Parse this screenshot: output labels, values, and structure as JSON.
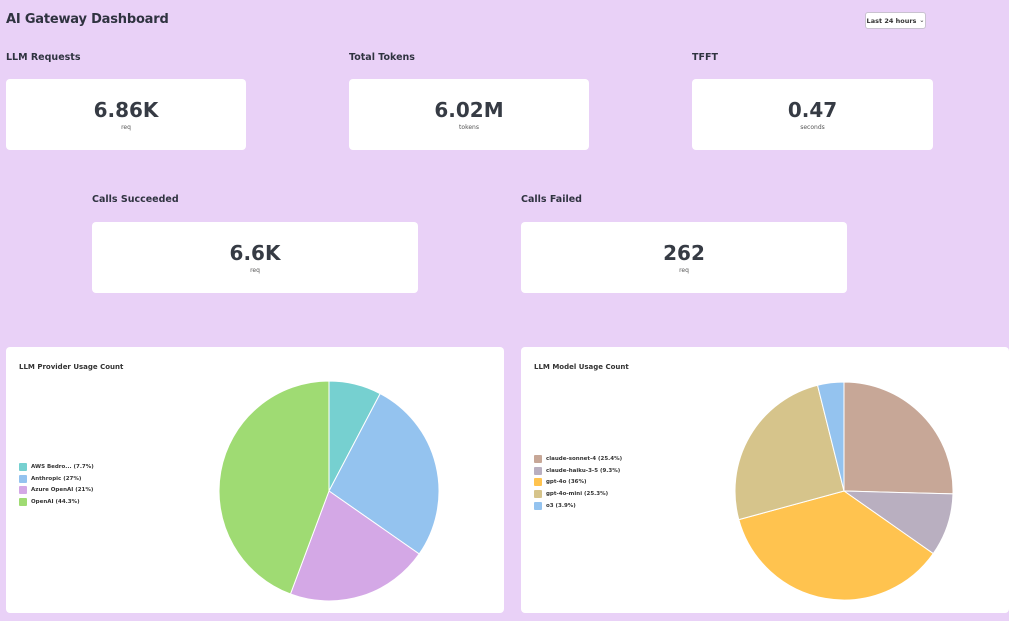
{
  "header": {
    "title": "AI Gateway Dashboard",
    "time_range": "Last 24 hours"
  },
  "stats": {
    "llm_requests": {
      "label": "LLM Requests",
      "value": "6.86K",
      "unit": "req"
    },
    "total_tokens": {
      "label": "Total Tokens",
      "value": "6.02M",
      "unit": "tokens"
    },
    "tfft": {
      "label": "TFFT",
      "value": "0.47",
      "unit": "seconds"
    },
    "calls_succeeded": {
      "label": "Calls Succeeded",
      "value": "6.6K",
      "unit": "req"
    },
    "calls_failed": {
      "label": "Calls Failed",
      "value": "262",
      "unit": "req"
    }
  },
  "chart_data": [
    {
      "type": "pie",
      "title": "LLM Provider Usage Count",
      "legend_position": "left",
      "slices": [
        {
          "label": "AWS Bedro... (7.7%)",
          "value": 7.7,
          "color": "#76d0d0"
        },
        {
          "label": "Anthropic (27%)",
          "value": 27,
          "color": "#94c3ef"
        },
        {
          "label": "Azure OpenAI (21%)",
          "value": 21,
          "color": "#d4a8e6"
        },
        {
          "label": "OpenAI (44.3%)",
          "value": 44.3,
          "color": "#9fdb73"
        }
      ]
    },
    {
      "type": "pie",
      "title": "LLM Model Usage Count",
      "legend_position": "left",
      "slices": [
        {
          "label": "claude-sonnet-4 (25.4%)",
          "value": 25.4,
          "color": "#c7a797"
        },
        {
          "label": "claude-haiku-3-5 (9.3%)",
          "value": 9.3,
          "color": "#b9afc0"
        },
        {
          "label": "gpt-4o (36%)",
          "value": 36,
          "color": "#ffc34f"
        },
        {
          "label": "gpt-4o-mini (25.3%)",
          "value": 25.3,
          "color": "#d6c48b"
        },
        {
          "label": "o3 (3.9%)",
          "value": 3.9,
          "color": "#94c3ef"
        }
      ]
    }
  ]
}
